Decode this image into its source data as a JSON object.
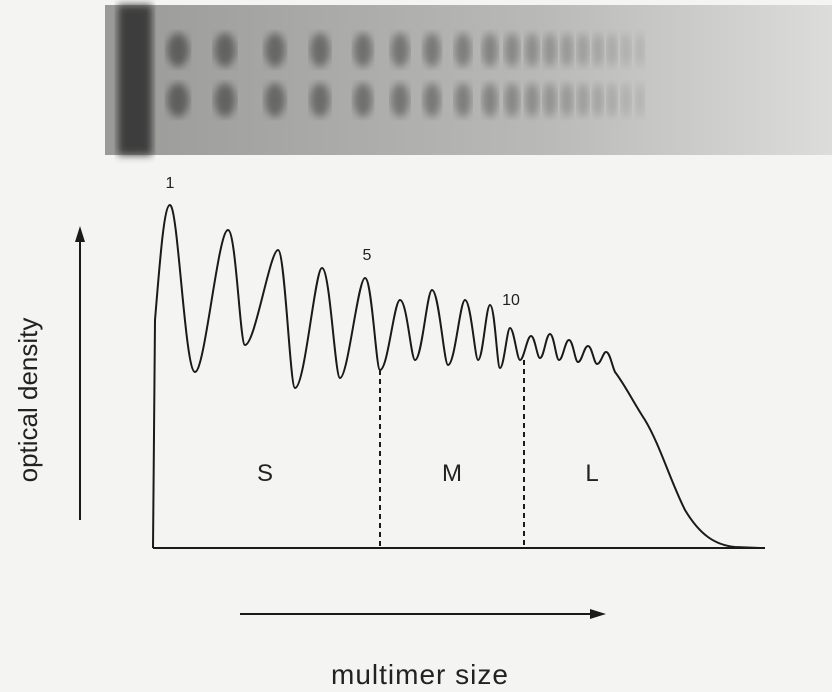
{
  "peak_labels": [
    "1",
    "5",
    "10"
  ],
  "regions": [
    "S",
    "M",
    "L"
  ],
  "axes": {
    "y_label": "optical density",
    "x_label": "multimer size"
  }
}
